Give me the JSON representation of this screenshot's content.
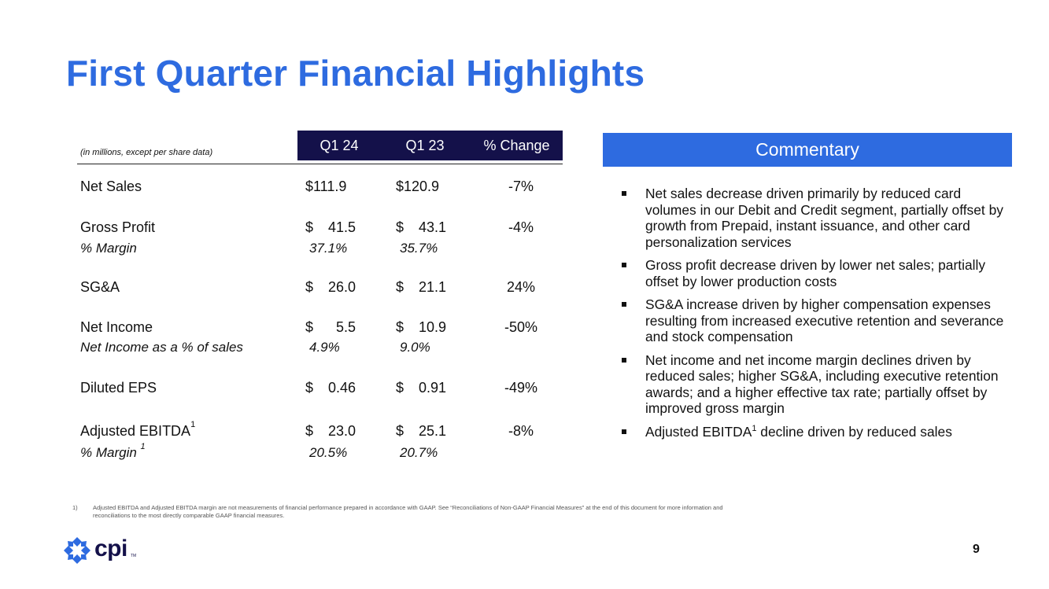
{
  "title": "First Quarter Financial Highlights",
  "table": {
    "note": "(in millions, except per share data)",
    "columns": [
      "Q1 24",
      "Q1 23",
      "% Change"
    ],
    "rows": {
      "net_sales": {
        "label": "Net Sales",
        "q124_sym": "$111.9",
        "q123_sym": "$120.9",
        "change": "-7%"
      },
      "gross_profit": {
        "label": "Gross Profit",
        "q124_cur": "$",
        "q124": "41.5",
        "q123_cur": "$",
        "q123": "43.1",
        "change": "-4%"
      },
      "gross_margin": {
        "label": "% Margin",
        "q124": "37.1%",
        "q123": "35.7%"
      },
      "sga": {
        "label": "SG&A",
        "q124_cur": "$",
        "q124": "26.0",
        "q123_cur": "$",
        "q123": "21.1",
        "change": "24%"
      },
      "net_income": {
        "label": "Net Income",
        "q124_cur": "$",
        "q124": "5.5",
        "q123_cur": "$",
        "q123": "10.9",
        "change": "-50%"
      },
      "net_income_pct": {
        "label": "Net Income as a % of sales",
        "q124": "4.9%",
        "q123": "9.0%"
      },
      "diluted_eps": {
        "label": "Diluted EPS",
        "q124_cur": "$",
        "q124": "0.46",
        "q123_cur": "$",
        "q123": "0.91",
        "change": "-49%"
      },
      "adj_ebitda": {
        "label": "Adjusted EBITDA",
        "sup": "1",
        "q124_cur": "$",
        "q124": "23.0",
        "q123_cur": "$",
        "q123": "25.1",
        "change": "-8%"
      },
      "adj_margin": {
        "label": "% Margin",
        "sup": "1",
        "q124": "20.5%",
        "q123": "20.7%"
      }
    }
  },
  "commentary": {
    "heading": "Commentary",
    "items": [
      "Net sales decrease driven primarily by reduced card volumes in our Debit and Credit segment, partially offset by growth from Prepaid, instant issuance, and other card personalization services",
      "Gross profit decrease driven by lower net sales; partially offset by lower production costs",
      "SG&A increase driven by higher compensation expenses resulting from increased executive retention and severance and stock compensation",
      "Net income and net income margin declines driven by reduced sales; higher SG&A, including executive retention awards; and a higher effective tax rate; partially offset by improved gross margin"
    ],
    "last_item": {
      "pre": "Adjusted EBITDA",
      "sup": "1",
      "post": " decline driven by reduced sales"
    }
  },
  "footnote": {
    "num": "1)",
    "text": "Adjusted EBITDA and Adjusted EBITDA margin are not measurements of financial performance prepared in accordance with GAAP. See “Reconciliations of Non-GAAP Financial Measures” at the end of this document for more information and reconciliations to the most directly comparable GAAP financial measures."
  },
  "logo": {
    "text": "cpi",
    "tm": "TM",
    "icon": "cpi-logo-icon"
  },
  "page_number": "9",
  "colors": {
    "title_blue": "#2E6BE0",
    "header_navy": "#14114A"
  }
}
